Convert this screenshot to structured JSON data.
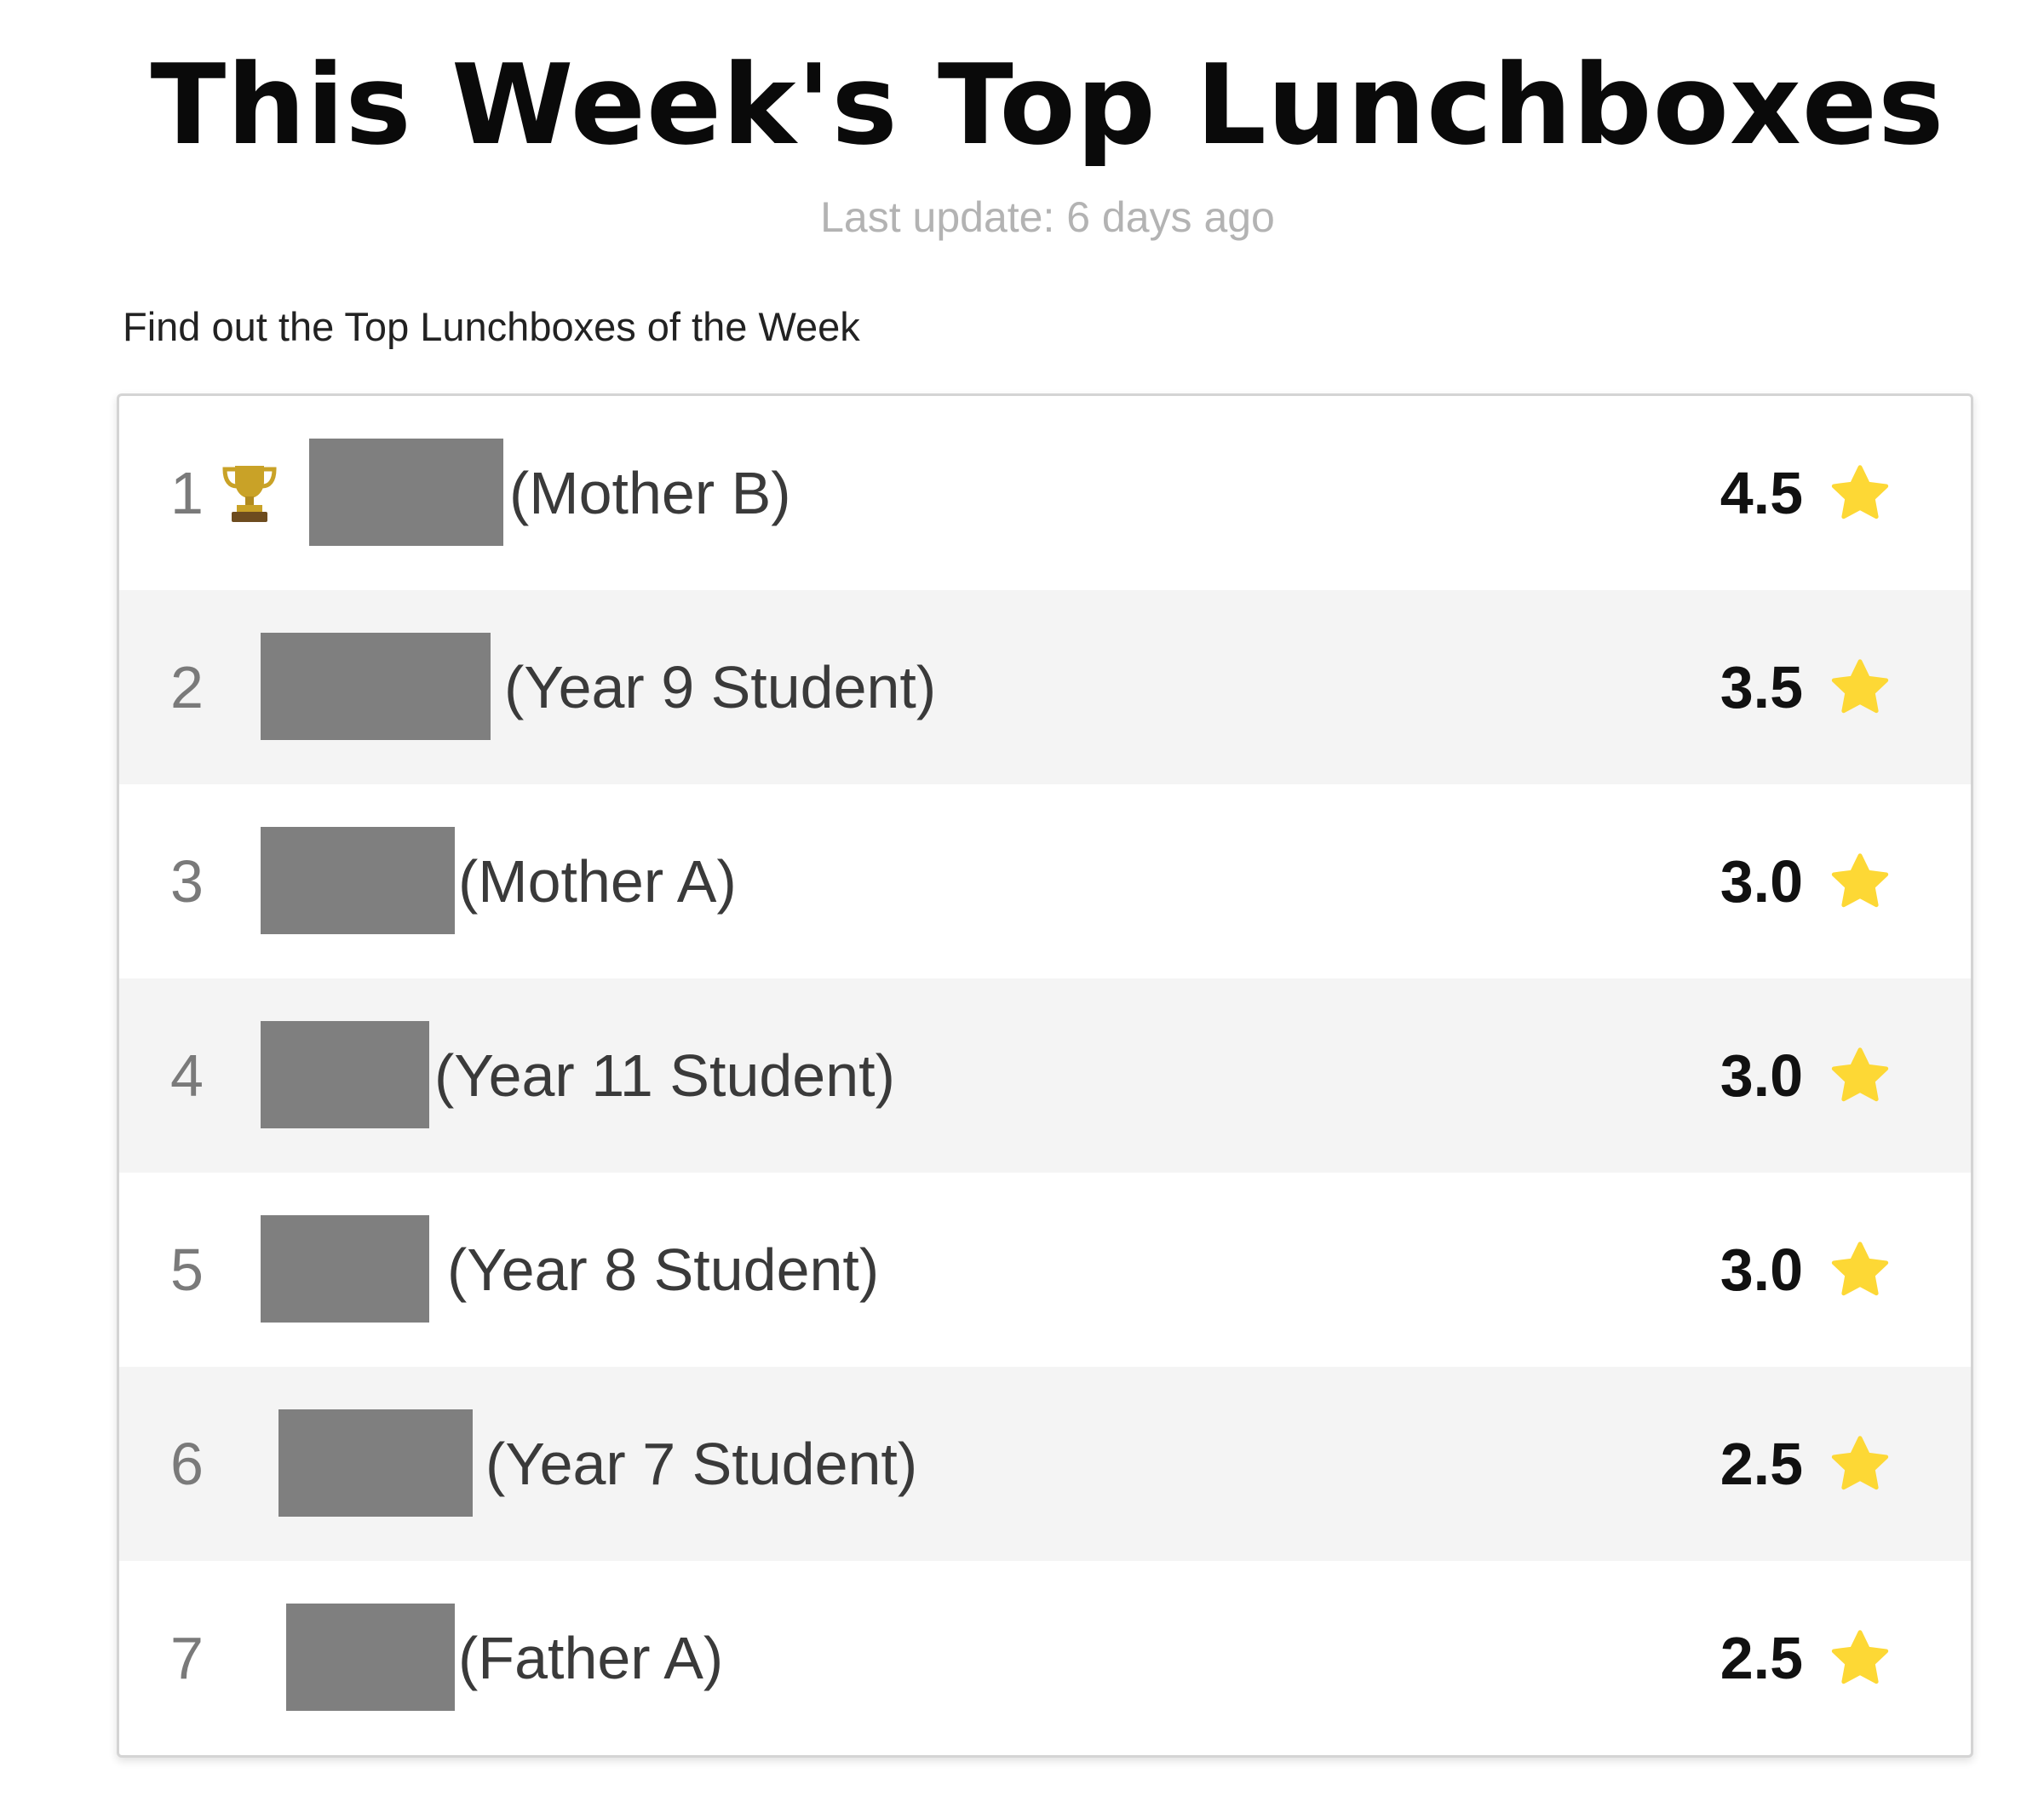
{
  "header": {
    "title": "This Week's Top Lunchboxes",
    "last_update": "Last update: 6 days ago",
    "intro": "Find out the Top Lunchboxes of the Week"
  },
  "colors": {
    "star": "#FDD835",
    "redaction": "#7F7F7F",
    "alt_row": "#F4F4F4",
    "trophy": "#C9A227"
  },
  "leaderboard": [
    {
      "rank": "1",
      "role": "(Mother B)",
      "score": "4.5",
      "icon": "trophy-icon"
    },
    {
      "rank": "2",
      "role": "(Year 9 Student)",
      "score": "3.5"
    },
    {
      "rank": "3",
      "role": "(Mother A)",
      "score": "3.0"
    },
    {
      "rank": "4",
      "role": "(Year 11 Student)",
      "score": "3.0"
    },
    {
      "rank": "5",
      "role": "(Year 8 Student)",
      "score": "3.0"
    },
    {
      "rank": "6",
      "role": "(Year 7 Student)",
      "score": "2.5"
    },
    {
      "rank": "7",
      "role": "(Father A)",
      "score": "2.5"
    }
  ]
}
